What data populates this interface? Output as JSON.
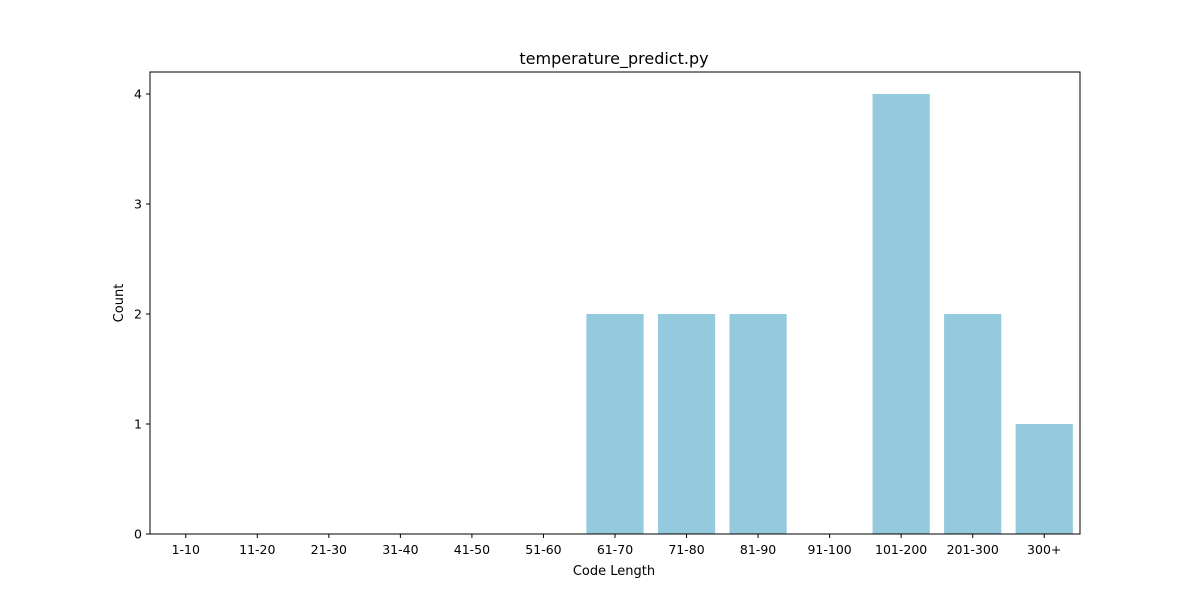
{
  "chart_data": {
    "type": "bar",
    "title": "temperature_predict.py",
    "xlabel": "Code Length",
    "ylabel": "Count",
    "categories": [
      "1-10",
      "11-20",
      "21-30",
      "31-40",
      "41-50",
      "51-60",
      "61-70",
      "71-80",
      "81-90",
      "91-100",
      "101-200",
      "201-300",
      "300+"
    ],
    "values": [
      0,
      0,
      0,
      0,
      0,
      0,
      2,
      2,
      2,
      0,
      4,
      2,
      1
    ],
    "yticks": [
      0,
      1,
      2,
      3,
      4
    ],
    "ylim": [
      0,
      4.2
    ],
    "grid": false,
    "legend": "none",
    "bar_color": "#95c9dd"
  }
}
